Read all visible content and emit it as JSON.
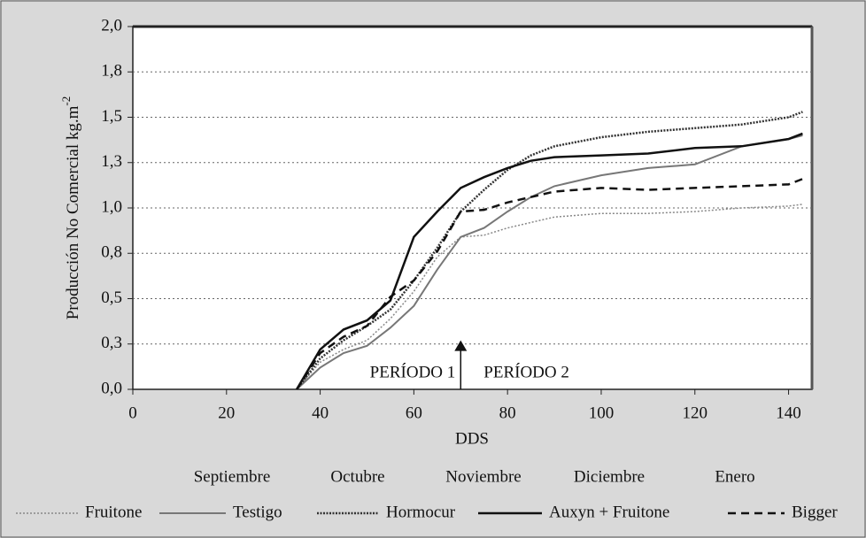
{
  "chart_data": {
    "type": "line",
    "ylabel": "Producción No Comercial kg.m",
    "ylabel_sup": "-2",
    "xlabel": "DDS",
    "months": [
      "Septiembre",
      "Octubre",
      "Noviembre",
      "Diciembre",
      "Enero"
    ],
    "annotations": [
      "PERÍODO 1",
      "PERÍODO 2"
    ],
    "arrow": {
      "x": 70,
      "y": 0.27
    },
    "x": [
      35,
      40,
      45,
      50,
      55,
      60,
      65,
      70,
      75,
      80,
      85,
      90,
      100,
      110,
      120,
      130,
      140,
      143
    ],
    "series": [
      {
        "name": "Fruitone",
        "color": "#888888",
        "dash": "2,2",
        "width": 1.5,
        "values": [
          0,
          0.15,
          0.22,
          0.27,
          0.39,
          0.54,
          0.73,
          0.84,
          0.85,
          0.89,
          0.92,
          0.95,
          0.97,
          0.97,
          0.98,
          1.0,
          1.01,
          1.02
        ]
      },
      {
        "name": "Testigo",
        "color": "#777777",
        "dash": "none",
        "width": 2,
        "values": [
          0,
          0.12,
          0.2,
          0.24,
          0.34,
          0.46,
          0.66,
          0.84,
          0.89,
          0.98,
          1.06,
          1.12,
          1.18,
          1.22,
          1.24,
          1.34,
          1.38,
          1.4
        ]
      },
      {
        "name": "Hormocur",
        "color": "#333333",
        "dash": "2,1.5",
        "width": 2.5,
        "values": [
          0,
          0.17,
          0.27,
          0.35,
          0.44,
          0.6,
          0.78,
          0.98,
          1.1,
          1.21,
          1.29,
          1.34,
          1.39,
          1.42,
          1.44,
          1.46,
          1.5,
          1.53
        ]
      },
      {
        "name": "Auxyn + Fruitone",
        "color": "#111111",
        "dash": "none",
        "width": 2.5,
        "values": [
          0,
          0.22,
          0.33,
          0.38,
          0.49,
          0.84,
          0.98,
          1.11,
          1.17,
          1.22,
          1.26,
          1.28,
          1.29,
          1.3,
          1.33,
          1.34,
          1.38,
          1.41
        ]
      },
      {
        "name": "Bigger",
        "color": "#111111",
        "dash": "9,6",
        "width": 2.5,
        "values": [
          0,
          0.2,
          0.29,
          0.35,
          0.51,
          0.6,
          0.76,
          0.98,
          0.99,
          1.03,
          1.06,
          1.09,
          1.11,
          1.1,
          1.11,
          1.12,
          1.13,
          1.16
        ]
      }
    ],
    "xlim": [
      0,
      145
    ],
    "xticks": [
      0,
      20,
      40,
      60,
      80,
      100,
      120,
      140
    ],
    "ylim": [
      0,
      2
    ],
    "yticks": [
      {
        "value": 0,
        "label": "0,0"
      },
      {
        "value": 0.25,
        "label": "0,3"
      },
      {
        "value": 0.5,
        "label": "0,5"
      },
      {
        "value": 0.75,
        "label": "0,8"
      },
      {
        "value": 1,
        "label": "1,0"
      },
      {
        "value": 1.25,
        "label": "1,3"
      },
      {
        "value": 1.5,
        "label": "1,5"
      },
      {
        "value": 1.75,
        "label": "1,8"
      },
      {
        "value": 2,
        "label": "2,0"
      }
    ],
    "grid": true
  }
}
